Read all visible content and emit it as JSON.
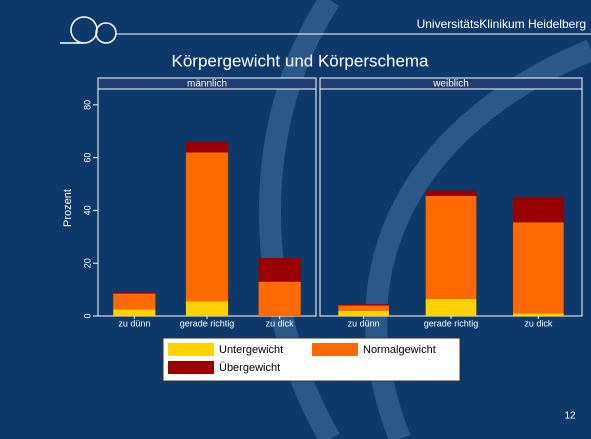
{
  "header": {
    "institution": "UniversitätsKlinikum Heidelberg",
    "page_number": "12"
  },
  "chart_data": {
    "type": "bar",
    "stacked": true,
    "title": "Körpergewicht und Körperschema",
    "ylabel": "Prozent",
    "ylim": [
      0,
      86
    ],
    "yticks": [
      0,
      20,
      40,
      60,
      80
    ],
    "series": [
      {
        "name": "Untergewicht",
        "color": "#ffd200"
      },
      {
        "name": "Normalgewicht",
        "color": "#ff6a00"
      },
      {
        "name": "Übergewicht",
        "color": "#9b0000"
      }
    ],
    "panels": [
      {
        "title": "männlich",
        "categories": [
          "zu dünn",
          "gerade richtig",
          "zu dick"
        ],
        "values": [
          [
            2.5,
            5.5,
            0
          ],
          [
            6,
            56.5,
            13
          ],
          [
            0.5,
            4,
            9
          ]
        ]
      },
      {
        "title": "weiblich",
        "categories": [
          "zu dünn",
          "gerade richtig",
          "zu dick"
        ],
        "values": [
          [
            2,
            6.5,
            1
          ],
          [
            2,
            39,
            34.5
          ],
          [
            0.5,
            2,
            9.5
          ]
        ]
      }
    ]
  }
}
